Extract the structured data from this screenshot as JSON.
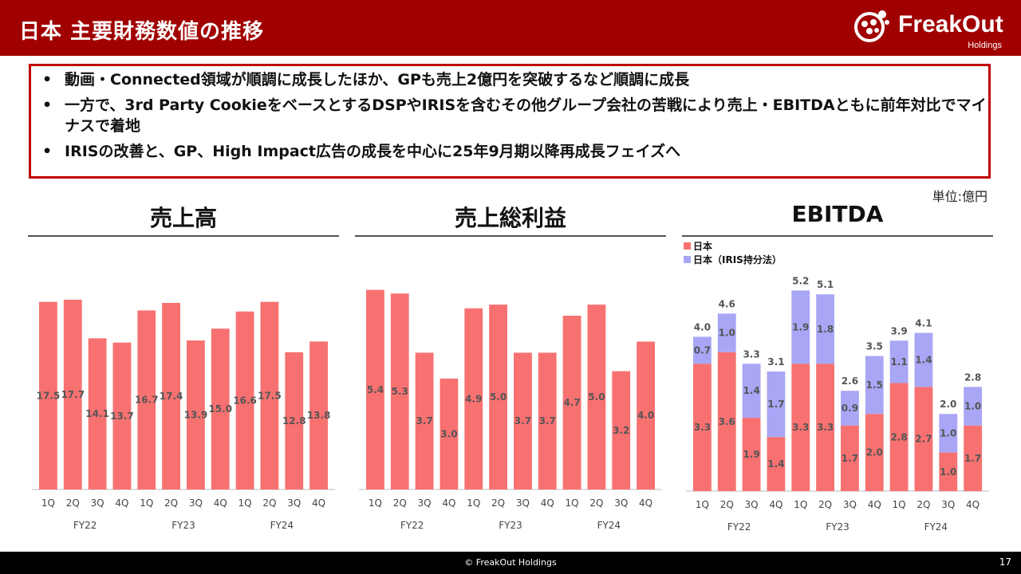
{
  "header": {
    "title": "日本 主要財務数値の推移"
  },
  "logo": {
    "name": "FreakOut",
    "sub": "Holdings"
  },
  "summary": {
    "bullets": [
      "動画・Connected領域が順調に成長したほか、GPも売上2億円を突破するなど順調に成長",
      "一方で、3rd Party CookieをベースとするDSPやIRISを含むその他グループ会社の苦戦により売上・EBITDAともに前年対比でマイナスで着地",
      "IRISの改善と、GP、High Impact広告の成長を中心に25年9月期以降再成長フェイズへ"
    ],
    "bullet_char": "•"
  },
  "unit_label": "単位:億円",
  "footer": {
    "copyright": "© FreakOut Holdings",
    "page": "17"
  },
  "colors": {
    "header_bg": "#a00000",
    "japan": "#f87171",
    "iris": "#a9a6f5"
  },
  "chart_data": [
    {
      "type": "bar",
      "title": "売上高",
      "categories": [
        "1Q",
        "2Q",
        "3Q",
        "4Q",
        "1Q",
        "2Q",
        "3Q",
        "4Q",
        "1Q",
        "2Q",
        "3Q",
        "4Q"
      ],
      "groups": [
        "FY22",
        "FY23",
        "FY24"
      ],
      "series": [
        {
          "values": [
            17.5,
            17.7,
            14.1,
            13.7,
            16.7,
            17.4,
            13.9,
            15.0,
            16.6,
            17.5,
            12.8,
            13.8
          ]
        }
      ],
      "ylim": [
        0,
        20
      ]
    },
    {
      "type": "bar",
      "title": "売上総利益",
      "categories": [
        "1Q",
        "2Q",
        "3Q",
        "4Q",
        "1Q",
        "2Q",
        "3Q",
        "4Q",
        "1Q",
        "2Q",
        "3Q",
        "4Q"
      ],
      "groups": [
        "FY22",
        "FY23",
        "FY24"
      ],
      "series": [
        {
          "values": [
            5.4,
            5.3,
            3.7,
            3.0,
            4.9,
            5.0,
            3.7,
            3.7,
            4.7,
            5.0,
            3.2,
            4.0
          ]
        }
      ],
      "ylim": [
        0,
        5.8
      ]
    },
    {
      "type": "bar",
      "stacked": true,
      "title": "EBITDA",
      "categories": [
        "1Q",
        "2Q",
        "3Q",
        "4Q",
        "1Q",
        "2Q",
        "3Q",
        "4Q",
        "1Q",
        "2Q",
        "3Q",
        "4Q"
      ],
      "groups": [
        "FY22",
        "FY23",
        "FY24"
      ],
      "series": [
        {
          "name": "日本",
          "values": [
            3.3,
            3.6,
            1.9,
            1.4,
            3.3,
            3.3,
            1.7,
            2.0,
            2.8,
            2.7,
            1.0,
            1.7
          ]
        },
        {
          "name": "日本（IRIS持分法）",
          "values": [
            0.7,
            1.0,
            1.4,
            1.7,
            1.9,
            1.8,
            0.9,
            1.5,
            1.1,
            1.4,
            1.0,
            1.0
          ]
        }
      ],
      "totals": [
        "4.0",
        "4.6",
        "3.3",
        "3.1",
        "5.2",
        "5.1",
        "2.6",
        "3.5",
        "3.9",
        "4.1",
        "2.0",
        "2.8"
      ],
      "ylim": [
        0,
        5.6
      ],
      "legend": "top-left"
    }
  ]
}
